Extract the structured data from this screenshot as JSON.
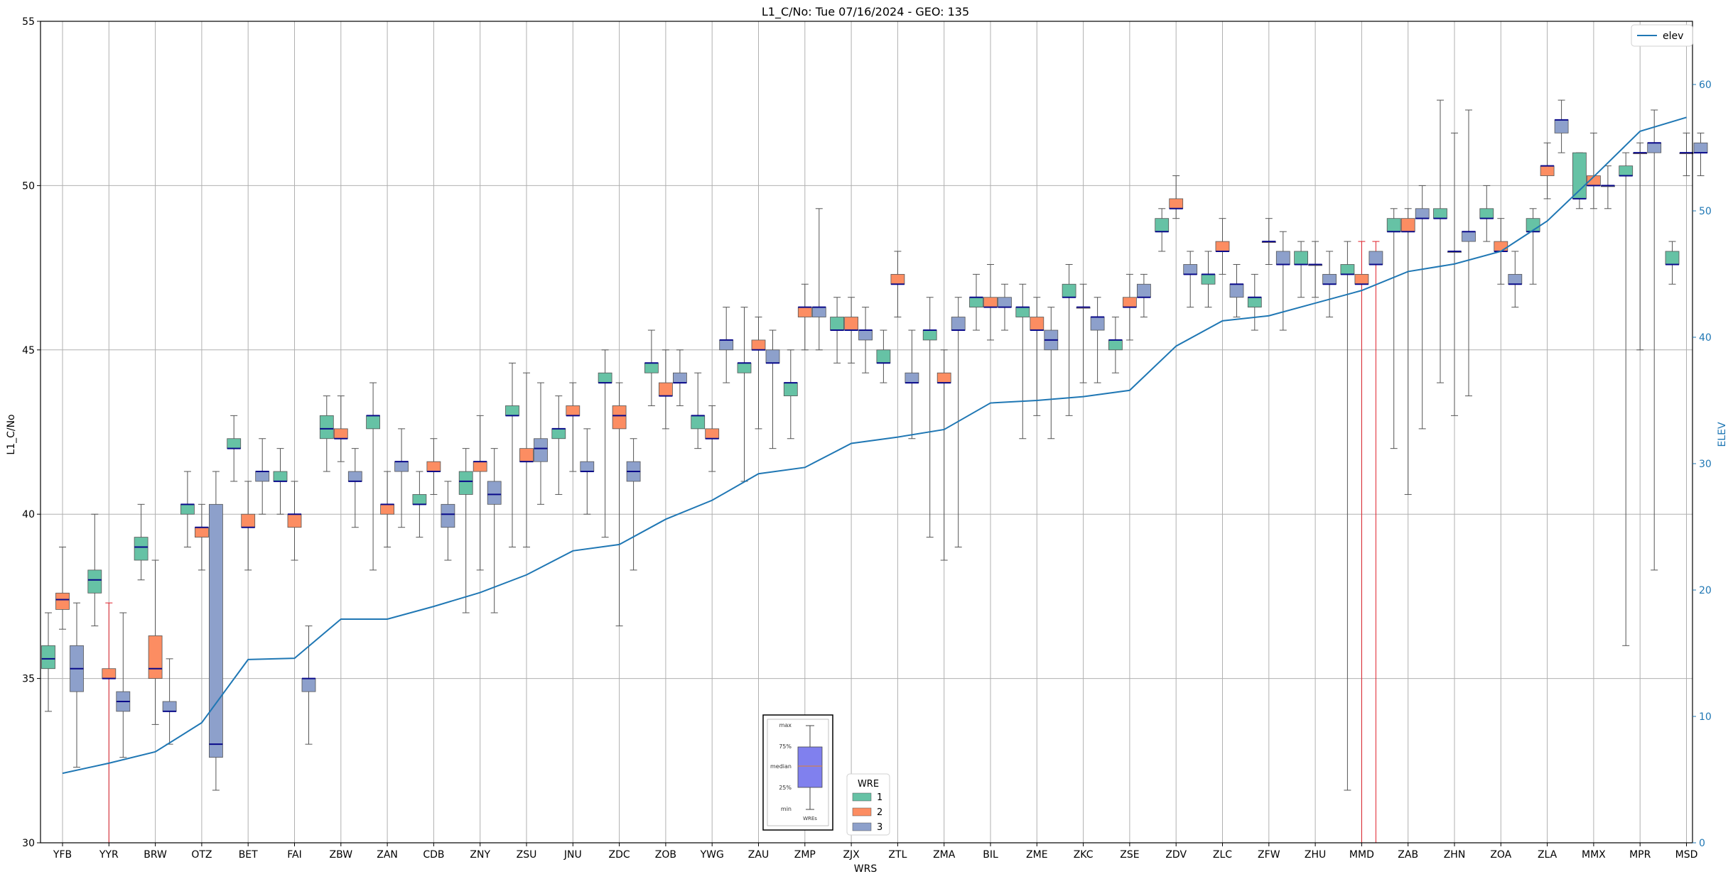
{
  "chart_data": {
    "type": "box",
    "title": "L1_C/No: Tue 07/16/2024 - GEO: 135",
    "xlabel": "WRS",
    "ylabel": "L1_C/No",
    "y2label": "ELEV",
    "ylim": [
      30,
      55
    ],
    "y2lim": [
      0,
      65
    ],
    "yticks": [
      30,
      35,
      40,
      45,
      50,
      55
    ],
    "y2ticks": [
      0,
      10,
      20,
      30,
      40,
      50,
      60
    ],
    "grid": true,
    "categories": [
      "YFB",
      "YYR",
      "BRW",
      "OTZ",
      "BET",
      "FAI",
      "ZBW",
      "ZAN",
      "CDB",
      "ZNY",
      "ZSU",
      "JNU",
      "ZDC",
      "ZOB",
      "YWG",
      "ZAU",
      "ZMP",
      "ZJX",
      "ZTL",
      "ZMA",
      "BIL",
      "ZME",
      "ZKC",
      "ZSE",
      "ZDV",
      "ZLC",
      "ZFW",
      "ZHU",
      "MMD",
      "ZAB",
      "ZHN",
      "ZOA",
      "ZLA",
      "MMX",
      "MPR",
      "MSD"
    ],
    "wre_colors": {
      "1": "#66c2a5",
      "2": "#fc8d62",
      "3": "#8da0cb"
    },
    "legend_wre": {
      "title": "WRE",
      "labels": [
        "1",
        "2",
        "3"
      ],
      "placement": "bottom-center"
    },
    "legend_elev": {
      "label": "elev",
      "placement": "top-right"
    },
    "key_labels": [
      "max",
      "75%",
      "median",
      "25%",
      "min",
      "WREs"
    ],
    "elev": [
      5.5,
      6.3,
      7.2,
      9.5,
      14.5,
      14.6,
      17.7,
      17.7,
      18.7,
      19.8,
      21.2,
      23.1,
      23.6,
      25.6,
      27.1,
      29.2,
      29.7,
      31.6,
      32.1,
      32.7,
      34.8,
      35.0,
      35.3,
      35.8,
      39.3,
      41.3,
      41.7,
      42.7,
      43.7,
      45.2,
      45.8,
      46.8,
      49.2,
      52.7,
      56.3,
      57.4
    ],
    "boxes": [
      {
        "cat": "YFB",
        "wre": 1,
        "min": 34,
        "q1": 35.3,
        "median": 35.6,
        "q3": 36,
        "max": 37
      },
      {
        "cat": "YFB",
        "wre": 2,
        "min": 36.5,
        "q1": 37.1,
        "median": 37.4,
        "q3": 37.6,
        "max": 39
      },
      {
        "cat": "YFB",
        "wre": 3,
        "min": 32.3,
        "q1": 34.6,
        "median": 35.3,
        "q3": 36,
        "max": 37.3
      },
      {
        "cat": "YYR",
        "wre": 1,
        "min": 36.6,
        "q1": 37.6,
        "median": 38,
        "q3": 38.3,
        "max": 40
      },
      {
        "cat": "YYR",
        "wre": 2,
        "min": 30,
        "q1": 35,
        "median": 35,
        "q3": 35.3,
        "max": 37.3
      },
      {
        "cat": "YYR",
        "wre": 3,
        "min": 32.6,
        "q1": 34,
        "median": 34.3,
        "q3": 34.6,
        "max": 37
      },
      {
        "cat": "BRW",
        "wre": 1,
        "min": 38,
        "q1": 38.6,
        "median": 39,
        "q3": 39.3,
        "max": 40.3
      },
      {
        "cat": "BRW",
        "wre": 2,
        "min": 33.6,
        "q1": 35,
        "median": 35.3,
        "q3": 36.3,
        "max": 38.6
      },
      {
        "cat": "BRW",
        "wre": 3,
        "min": 33,
        "q1": 34,
        "median": 34,
        "q3": 34.3,
        "max": 35.6
      },
      {
        "cat": "OTZ",
        "wre": 1,
        "min": 39,
        "q1": 40,
        "median": 40.3,
        "q3": 40.3,
        "max": 41.3
      },
      {
        "cat": "OTZ",
        "wre": 2,
        "min": 38.3,
        "q1": 39.3,
        "median": 39.6,
        "q3": 39.6,
        "max": 40.3
      },
      {
        "cat": "OTZ",
        "wre": 3,
        "min": 31.6,
        "q1": 32.6,
        "median": 33,
        "q3": 40.3,
        "max": 41.3
      },
      {
        "cat": "BET",
        "wre": 1,
        "min": 41,
        "q1": 42,
        "median": 42,
        "q3": 42.3,
        "max": 43
      },
      {
        "cat": "BET",
        "wre": 2,
        "min": 38.3,
        "q1": 39.6,
        "median": 39.6,
        "q3": 40,
        "max": 41
      },
      {
        "cat": "BET",
        "wre": 3,
        "min": 40,
        "q1": 41,
        "median": 41.3,
        "q3": 41.3,
        "max": 42.3
      },
      {
        "cat": "FAI",
        "wre": 1,
        "min": 40,
        "q1": 41,
        "median": 41,
        "q3": 41.3,
        "max": 42
      },
      {
        "cat": "FAI",
        "wre": 2,
        "min": 38.6,
        "q1": 39.6,
        "median": 40,
        "q3": 40,
        "max": 41
      },
      {
        "cat": "FAI",
        "wre": 3,
        "min": 33,
        "q1": 34.6,
        "median": 35,
        "q3": 35,
        "max": 36.6
      },
      {
        "cat": "ZBW",
        "wre": 1,
        "min": 41.3,
        "q1": 42.3,
        "median": 42.6,
        "q3": 43,
        "max": 43.6
      },
      {
        "cat": "ZBW",
        "wre": 2,
        "min": 41.6,
        "q1": 42.3,
        "median": 42.3,
        "q3": 42.6,
        "max": 43.6
      },
      {
        "cat": "ZBW",
        "wre": 3,
        "min": 39.6,
        "q1": 41,
        "median": 41,
        "q3": 41.3,
        "max": 42
      },
      {
        "cat": "ZAN",
        "wre": 1,
        "min": 38.3,
        "q1": 42.6,
        "median": 43,
        "q3": 43,
        "max": 44
      },
      {
        "cat": "ZAN",
        "wre": 2,
        "min": 39,
        "q1": 40,
        "median": 40.3,
        "q3": 40.3,
        "max": 41.3
      },
      {
        "cat": "ZAN",
        "wre": 3,
        "min": 39.6,
        "q1": 41.3,
        "median": 41.6,
        "q3": 41.6,
        "max": 42.6
      },
      {
        "cat": "CDB",
        "wre": 1,
        "min": 39.3,
        "q1": 40.3,
        "median": 40.3,
        "q3": 40.6,
        "max": 41.3
      },
      {
        "cat": "CDB",
        "wre": 2,
        "min": 40.6,
        "q1": 41.3,
        "median": 41.3,
        "q3": 41.6,
        "max": 42.3
      },
      {
        "cat": "CDB",
        "wre": 3,
        "min": 38.6,
        "q1": 39.6,
        "median": 40,
        "q3": 40.3,
        "max": 41
      },
      {
        "cat": "ZNY",
        "wre": 1,
        "min": 37,
        "q1": 40.6,
        "median": 41,
        "q3": 41.3,
        "max": 42
      },
      {
        "cat": "ZNY",
        "wre": 2,
        "min": 38.3,
        "q1": 41.3,
        "median": 41.6,
        "q3": 41.6,
        "max": 43
      },
      {
        "cat": "ZNY",
        "wre": 3,
        "min": 37,
        "q1": 40.3,
        "median": 40.6,
        "q3": 41,
        "max": 42
      },
      {
        "cat": "ZSU",
        "wre": 1,
        "min": 39,
        "q1": 43,
        "median": 43,
        "q3": 43.3,
        "max": 44.6
      },
      {
        "cat": "ZSU",
        "wre": 2,
        "min": 39,
        "q1": 41.6,
        "median": 41.6,
        "q3": 42,
        "max": 44.3
      },
      {
        "cat": "ZSU",
        "wre": 3,
        "min": 40.3,
        "q1": 41.6,
        "median": 42,
        "q3": 42.3,
        "max": 44
      },
      {
        "cat": "JNU",
        "wre": 1,
        "min": 40.6,
        "q1": 42.3,
        "median": 42.6,
        "q3": 42.6,
        "max": 43.6
      },
      {
        "cat": "JNU",
        "wre": 2,
        "min": 41.3,
        "q1": 43,
        "median": 43,
        "q3": 43.3,
        "max": 44
      },
      {
        "cat": "JNU",
        "wre": 3,
        "min": 40,
        "q1": 41.3,
        "median": 41.3,
        "q3": 41.6,
        "max": 42.6
      },
      {
        "cat": "ZDC",
        "wre": 1,
        "min": 39.3,
        "q1": 44,
        "median": 44,
        "q3": 44.3,
        "max": 45
      },
      {
        "cat": "ZDC",
        "wre": 2,
        "min": 36.6,
        "q1": 42.6,
        "median": 43,
        "q3": 43.3,
        "max": 44
      },
      {
        "cat": "ZDC",
        "wre": 3,
        "min": 38.3,
        "q1": 41,
        "median": 41.3,
        "q3": 41.6,
        "max": 42.3
      },
      {
        "cat": "ZOB",
        "wre": 1,
        "min": 43.3,
        "q1": 44.3,
        "median": 44.6,
        "q3": 44.6,
        "max": 45.6
      },
      {
        "cat": "ZOB",
        "wre": 2,
        "min": 42.6,
        "q1": 43.6,
        "median": 43.6,
        "q3": 44,
        "max": 45
      },
      {
        "cat": "ZOB",
        "wre": 3,
        "min": 43.3,
        "q1": 44,
        "median": 44,
        "q3": 44.3,
        "max": 45
      },
      {
        "cat": "YWG",
        "wre": 1,
        "min": 42,
        "q1": 42.6,
        "median": 43,
        "q3": 43,
        "max": 44.3
      },
      {
        "cat": "YWG",
        "wre": 2,
        "min": 41.3,
        "q1": 42.3,
        "median": 42.3,
        "q3": 42.6,
        "max": 43.3
      },
      {
        "cat": "YWG",
        "wre": 3,
        "min": 44,
        "q1": 45,
        "median": 45.3,
        "q3": 45.3,
        "max": 46.3
      },
      {
        "cat": "ZAU",
        "wre": 1,
        "min": 41,
        "q1": 44.3,
        "median": 44.6,
        "q3": 44.6,
        "max": 46.3
      },
      {
        "cat": "ZAU",
        "wre": 2,
        "min": 42.6,
        "q1": 45,
        "median": 45,
        "q3": 45.3,
        "max": 46
      },
      {
        "cat": "ZAU",
        "wre": 3,
        "min": 42,
        "q1": 44.6,
        "median": 44.6,
        "q3": 45,
        "max": 45.6
      },
      {
        "cat": "ZMP",
        "wre": 1,
        "min": 42.3,
        "q1": 43.6,
        "median": 44,
        "q3": 44,
        "max": 45
      },
      {
        "cat": "ZMP",
        "wre": 2,
        "min": 45,
        "q1": 46,
        "median": 46.3,
        "q3": 46.3,
        "max": 47
      },
      {
        "cat": "ZMP",
        "wre": 3,
        "min": 45,
        "q1": 46,
        "median": 46.3,
        "q3": 46.3,
        "max": 49.3
      },
      {
        "cat": "ZJX",
        "wre": 1,
        "min": 44.6,
        "q1": 45.6,
        "median": 45.6,
        "q3": 46,
        "max": 46.6
      },
      {
        "cat": "ZJX",
        "wre": 2,
        "min": 44.6,
        "q1": 45.6,
        "median": 45.6,
        "q3": 46,
        "max": 46.6
      },
      {
        "cat": "ZJX",
        "wre": 3,
        "min": 44.3,
        "q1": 45.3,
        "median": 45.6,
        "q3": 45.6,
        "max": 46.3
      },
      {
        "cat": "ZTL",
        "wre": 1,
        "min": 44,
        "q1": 44.6,
        "median": 44.6,
        "q3": 45,
        "max": 45.6
      },
      {
        "cat": "ZTL",
        "wre": 2,
        "min": 46,
        "q1": 47,
        "median": 47,
        "q3": 47.3,
        "max": 48
      },
      {
        "cat": "ZTL",
        "wre": 3,
        "min": 42.3,
        "q1": 44,
        "median": 44,
        "q3": 44.3,
        "max": 45.6
      },
      {
        "cat": "ZMA",
        "wre": 1,
        "min": 39.3,
        "q1": 45.3,
        "median": 45.6,
        "q3": 45.6,
        "max": 46.6
      },
      {
        "cat": "ZMA",
        "wre": 2,
        "min": 38.6,
        "q1": 44,
        "median": 44,
        "q3": 44.3,
        "max": 45
      },
      {
        "cat": "ZMA",
        "wre": 3,
        "min": 39,
        "q1": 45.6,
        "median": 45.6,
        "q3": 46,
        "max": 46.6
      },
      {
        "cat": "BIL",
        "wre": 1,
        "min": 45.6,
        "q1": 46.3,
        "median": 46.6,
        "q3": 46.6,
        "max": 47.3
      },
      {
        "cat": "BIL",
        "wre": 2,
        "min": 45.3,
        "q1": 46.3,
        "median": 46.3,
        "q3": 46.6,
        "max": 47.6
      },
      {
        "cat": "BIL",
        "wre": 3,
        "min": 45.6,
        "q1": 46.3,
        "median": 46.3,
        "q3": 46.6,
        "max": 47
      },
      {
        "cat": "ZME",
        "wre": 1,
        "min": 42.3,
        "q1": 46,
        "median": 46.3,
        "q3": 46.3,
        "max": 47
      },
      {
        "cat": "ZME",
        "wre": 2,
        "min": 43,
        "q1": 45.6,
        "median": 45.6,
        "q3": 46,
        "max": 46.6
      },
      {
        "cat": "ZME",
        "wre": 3,
        "min": 42.3,
        "q1": 45,
        "median": 45.3,
        "q3": 45.6,
        "max": 46.3
      },
      {
        "cat": "ZKC",
        "wre": 1,
        "min": 43,
        "q1": 46.6,
        "median": 46.6,
        "q3": 47,
        "max": 47.6
      },
      {
        "cat": "ZKC",
        "wre": 2,
        "min": 44,
        "q1": 46.3,
        "median": 46.3,
        "q3": 46.3,
        "max": 47
      },
      {
        "cat": "ZKC",
        "wre": 3,
        "min": 44,
        "q1": 45.6,
        "median": 46,
        "q3": 46,
        "max": 46.6
      },
      {
        "cat": "ZSE",
        "wre": 1,
        "min": 44.3,
        "q1": 45,
        "median": 45.3,
        "q3": 45.3,
        "max": 46
      },
      {
        "cat": "ZSE",
        "wre": 2,
        "min": 45.3,
        "q1": 46.3,
        "median": 46.3,
        "q3": 46.6,
        "max": 47.3
      },
      {
        "cat": "ZSE",
        "wre": 3,
        "min": 46,
        "q1": 46.6,
        "median": 46.6,
        "q3": 47,
        "max": 47.3
      },
      {
        "cat": "ZDV",
        "wre": 1,
        "min": 48,
        "q1": 48.6,
        "median": 48.6,
        "q3": 49,
        "max": 49.3
      },
      {
        "cat": "ZDV",
        "wre": 2,
        "min": 49,
        "q1": 49.3,
        "median": 49.3,
        "q3": 49.6,
        "max": 50.3
      },
      {
        "cat": "ZDV",
        "wre": 3,
        "min": 46.3,
        "q1": 47.3,
        "median": 47.3,
        "q3": 47.6,
        "max": 48
      },
      {
        "cat": "ZLC",
        "wre": 1,
        "min": 46.3,
        "q1": 47,
        "median": 47.3,
        "q3": 47.3,
        "max": 48
      },
      {
        "cat": "ZLC",
        "wre": 2,
        "min": 47.3,
        "q1": 48,
        "median": 48,
        "q3": 48.3,
        "max": 49
      },
      {
        "cat": "ZLC",
        "wre": 3,
        "min": 46,
        "q1": 46.6,
        "median": 47,
        "q3": 47,
        "max": 47.6
      },
      {
        "cat": "ZFW",
        "wre": 1,
        "min": 45.6,
        "q1": 46.3,
        "median": 46.6,
        "q3": 46.6,
        "max": 47.3
      },
      {
        "cat": "ZFW",
        "wre": 2,
        "min": 47.6,
        "q1": 48.3,
        "median": 48.3,
        "q3": 48.3,
        "max": 49
      },
      {
        "cat": "ZFW",
        "wre": 3,
        "min": 45.6,
        "q1": 47.6,
        "median": 47.6,
        "q3": 48,
        "max": 48.6
      },
      {
        "cat": "ZHU",
        "wre": 1,
        "min": 46.6,
        "q1": 47.6,
        "median": 47.6,
        "q3": 48,
        "max": 48.3
      },
      {
        "cat": "ZHU",
        "wre": 2,
        "min": 46.6,
        "q1": 47.6,
        "median": 47.6,
        "q3": 47.6,
        "max": 48.3
      },
      {
        "cat": "ZHU",
        "wre": 3,
        "min": 46,
        "q1": 47,
        "median": 47,
        "q3": 47.3,
        "max": 48
      },
      {
        "cat": "MMD",
        "wre": 1,
        "min": 31.6,
        "q1": 47.3,
        "median": 47.3,
        "q3": 47.6,
        "max": 48.3
      },
      {
        "cat": "MMD",
        "wre": 2,
        "min": 30,
        "q1": 47,
        "median": 47,
        "q3": 47.3,
        "max": 48.3
      },
      {
        "cat": "MMD",
        "wre": 3,
        "min": 30,
        "q1": 47.6,
        "median": 47.6,
        "q3": 48,
        "max": 48.3
      },
      {
        "cat": "ZAB",
        "wre": 1,
        "min": 42,
        "q1": 48.6,
        "median": 48.6,
        "q3": 49,
        "max": 49.3
      },
      {
        "cat": "ZAB",
        "wre": 2,
        "min": 40.6,
        "q1": 48.6,
        "median": 48.6,
        "q3": 49,
        "max": 49.3
      },
      {
        "cat": "ZAB",
        "wre": 3,
        "min": 42.6,
        "q1": 49,
        "median": 49,
        "q3": 49.3,
        "max": 50
      },
      {
        "cat": "ZHN",
        "wre": 1,
        "min": 44,
        "q1": 49,
        "median": 49,
        "q3": 49.3,
        "max": 52.6
      },
      {
        "cat": "ZHN",
        "wre": 2,
        "min": 43,
        "q1": 48,
        "median": 48,
        "q3": 48,
        "max": 51.6
      },
      {
        "cat": "ZHN",
        "wre": 3,
        "min": 43.6,
        "q1": 48.3,
        "median": 48.6,
        "q3": 48.6,
        "max": 52.3
      },
      {
        "cat": "ZOA",
        "wre": 1,
        "min": 48.3,
        "q1": 49,
        "median": 49,
        "q3": 49.3,
        "max": 50
      },
      {
        "cat": "ZOA",
        "wre": 2,
        "min": 47,
        "q1": 48,
        "median": 48,
        "q3": 48.3,
        "max": 49
      },
      {
        "cat": "ZOA",
        "wre": 3,
        "min": 46.3,
        "q1": 47,
        "median": 47,
        "q3": 47.3,
        "max": 48
      },
      {
        "cat": "ZLA",
        "wre": 1,
        "min": 47,
        "q1": 48.6,
        "median": 48.6,
        "q3": 49,
        "max": 49.3
      },
      {
        "cat": "ZLA",
        "wre": 2,
        "min": 49.6,
        "q1": 50.3,
        "median": 50.6,
        "q3": 50.6,
        "max": 51.3
      },
      {
        "cat": "ZLA",
        "wre": 3,
        "min": 51,
        "q1": 51.6,
        "median": 52,
        "q3": 52,
        "max": 52.6
      },
      {
        "cat": "MMX",
        "wre": 1,
        "min": 49.3,
        "q1": 49.6,
        "median": 49.6,
        "q3": 51,
        "max": 51
      },
      {
        "cat": "MMX",
        "wre": 2,
        "min": 49.3,
        "q1": 50,
        "median": 50,
        "q3": 50.3,
        "max": 51.6
      },
      {
        "cat": "MMX",
        "wre": 3,
        "min": 49.3,
        "q1": 50,
        "median": 50,
        "q3": 50,
        "max": 50.6
      },
      {
        "cat": "MPR",
        "wre": 1,
        "min": 36,
        "q1": 50.3,
        "median": 50.3,
        "q3": 50.6,
        "max": 51
      },
      {
        "cat": "MPR",
        "wre": 2,
        "min": 45,
        "q1": 51,
        "median": 51,
        "q3": 51,
        "max": 51.3
      },
      {
        "cat": "MPR",
        "wre": 3,
        "min": 38.3,
        "q1": 51,
        "median": 51.3,
        "q3": 51.3,
        "max": 52.3
      },
      {
        "cat": "MSD",
        "wre": 1,
        "min": 47,
        "q1": 47.6,
        "median": 47.6,
        "q3": 48,
        "max": 48.3
      },
      {
        "cat": "MSD",
        "wre": 2,
        "min": 50.3,
        "q1": 51,
        "median": 51,
        "q3": 51,
        "max": 51.6
      },
      {
        "cat": "MSD",
        "wre": 3,
        "min": 50.3,
        "q1": 51,
        "median": 51,
        "q3": 51.3,
        "max": 51.6
      }
    ]
  }
}
